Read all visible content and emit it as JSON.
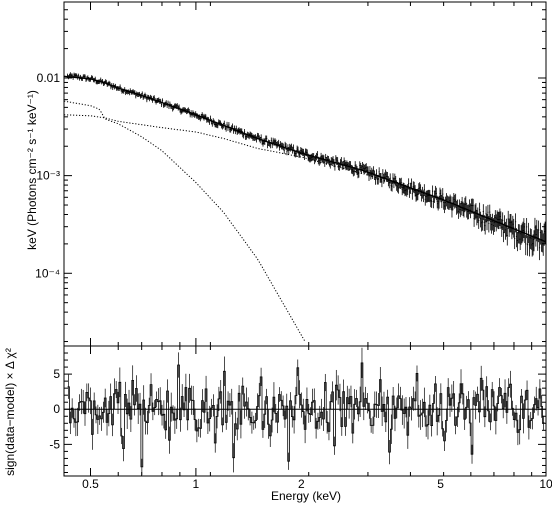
{
  "chart_data": [
    {
      "type": "line",
      "panel": "spectrum",
      "x_scale": "log",
      "y_scale": "log",
      "xlim": [
        0.42,
        10.0
      ],
      "ylim": [
        1.8e-05,
        0.06
      ],
      "xlabel": "",
      "ylabel": "keV (Photons cm⁻² s⁻¹ keV⁻¹)",
      "y_ticks": [
        {
          "value": 0.01,
          "label": "0.01"
        },
        {
          "value": 0.001,
          "label": "10⁻³"
        },
        {
          "value": 0.0001,
          "label": "10⁻⁴"
        }
      ],
      "series": [
        {
          "style": "data-with-errorbars",
          "x": [
            0.45,
            0.5,
            0.55,
            0.6,
            0.7,
            0.8,
            1.0,
            1.5,
            2.0,
            3.0,
            5.0,
            8.0,
            10.0
          ],
          "values": [
            0.0104,
            0.0098,
            0.0089,
            0.0079,
            0.0066,
            0.0056,
            0.0042,
            0.0024,
            0.0017,
            0.00113,
            0.00058,
            0.00029,
            0.00022
          ]
        },
        {
          "style": "model-total-solid",
          "x": [
            0.42,
            0.5,
            0.55,
            0.6,
            0.7,
            0.8,
            1.0,
            1.5,
            2.0,
            3.0,
            5.0,
            8.0,
            10.0
          ],
          "values": [
            0.0104,
            0.0098,
            0.0089,
            0.0079,
            0.0066,
            0.0056,
            0.0042,
            0.0024,
            0.0017,
            0.00113,
            0.00058,
            0.00029,
            0.00021
          ]
        },
        {
          "style": "component-powerlaw-dotted",
          "x": [
            0.42,
            0.5,
            0.55,
            0.6,
            0.8,
            1.0,
            1.2,
            1.5,
            2.0,
            3.0,
            5.0,
            10.0
          ],
          "values": [
            0.0042,
            0.0041,
            0.0039,
            0.0036,
            0.0031,
            0.0028,
            0.0024,
            0.0019,
            0.00155,
            0.00105,
            0.00058,
            0.00021
          ]
        },
        {
          "style": "component-thermal-dotted",
          "x": [
            0.42,
            0.5,
            0.53,
            0.55,
            0.6,
            0.7,
            0.8,
            1.0,
            1.2,
            1.5,
            1.8,
            2.05
          ],
          "values": [
            0.0058,
            0.0052,
            0.0048,
            0.0038,
            0.0034,
            0.0025,
            0.0018,
            0.00085,
            0.00042,
            0.00014,
            4.5e-05,
            2e-05
          ]
        }
      ]
    },
    {
      "type": "line",
      "panel": "residuals",
      "x_scale": "log",
      "xlim": [
        0.42,
        10.0
      ],
      "ylim": [
        -9.5,
        9.0
      ],
      "xlabel": "Energy (keV)",
      "ylabel": "sign(data−model) × Δ χ²",
      "x_ticks": [
        {
          "value": 0.5,
          "label": "0.5"
        },
        {
          "value": 1,
          "label": "1"
        },
        {
          "value": 2,
          "label": "2"
        },
        {
          "value": 5,
          "label": "5"
        },
        {
          "value": 10,
          "label": "10"
        }
      ],
      "y_ticks": [
        {
          "value": 5,
          "label": "5"
        },
        {
          "value": 0,
          "label": "0"
        },
        {
          "value": -5,
          "label": "-5"
        }
      ],
      "reference_line": 0,
      "residual_style": "histogram-step",
      "x": [
        0.43,
        0.45,
        0.47,
        0.5,
        0.52,
        0.55,
        0.58,
        0.6,
        0.63,
        0.66,
        0.7,
        0.74,
        0.78,
        0.82,
        0.86,
        0.9,
        0.95,
        1.0,
        1.05,
        1.1,
        1.15,
        1.2,
        1.27,
        1.35,
        1.42,
        1.5,
        1.6,
        1.7,
        1.8,
        1.9,
        2.0,
        2.1,
        2.2,
        2.35,
        2.5,
        2.65,
        2.8,
        3.0,
        3.2,
        3.4,
        3.6,
        3.85,
        4.1,
        4.4,
        4.7,
        5.0,
        5.4,
        5.8,
        6.2,
        6.7,
        7.2,
        7.8,
        8.4,
        9.0,
        9.6
      ],
      "values": [
        3.2,
        -1.8,
        2.4,
        -0.8,
        1.6,
        -3.6,
        2.2,
        -5.6,
        4.1,
        -8.2,
        3.5,
        -2.6,
        1.2,
        -4.4,
        6.3,
        -1.5,
        7.8,
        -3.1,
        2.9,
        -4.8,
        5.4,
        -2.2,
        -6.9,
        3.3,
        -1.9,
        4.6,
        -3.8,
        2.1,
        -7.4,
        5.9,
        1.4,
        -2.7,
        3.8,
        -5.2,
        2.5,
        -3.4,
        6.6,
        -2.3,
        4.2,
        -6.1,
        1.9,
        -3.7,
        5.1,
        -2.4,
        3.6,
        -4.5,
        2.2,
        -6.4,
        4.4,
        -1.8,
        3.1,
        -3.3,
        2.7,
        1.5,
        -1.2
      ]
    }
  ]
}
